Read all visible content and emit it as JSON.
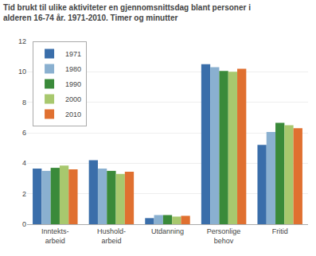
{
  "chart_data": {
    "type": "bar",
    "title": "Tid brukt til ulike aktiviteter en gjennomsnittsdag blant personer i\nalderen 16-74 år. 1971-2010. Timer og minutter",
    "categories": [
      "Inntekts-\narbeid",
      "Hushold-\narbeid",
      "Utdanning",
      "Personlige\nbehov",
      "Fritid"
    ],
    "series": [
      {
        "name": "1971",
        "color": "#3a6eaa",
        "values": [
          3.65,
          4.2,
          0.4,
          10.5,
          5.2
        ]
      },
      {
        "name": "1980",
        "color": "#8ab0d0",
        "values": [
          3.5,
          3.65,
          0.6,
          10.3,
          6.05
        ]
      },
      {
        "name": "1990",
        "color": "#3a8a3a",
        "values": [
          3.7,
          3.5,
          0.6,
          10.05,
          6.65
        ]
      },
      {
        "name": "2000",
        "color": "#a8c86e",
        "values": [
          3.85,
          3.3,
          0.5,
          10.0,
          6.5
        ]
      },
      {
        "name": "2010",
        "color": "#e07030",
        "values": [
          3.6,
          3.45,
          0.55,
          10.2,
          6.3
        ]
      }
    ],
    "ylim": [
      0,
      12
    ],
    "yticks": [
      0,
      2,
      4,
      6,
      8,
      10,
      12
    ],
    "grid": true,
    "legend": "upper left"
  }
}
